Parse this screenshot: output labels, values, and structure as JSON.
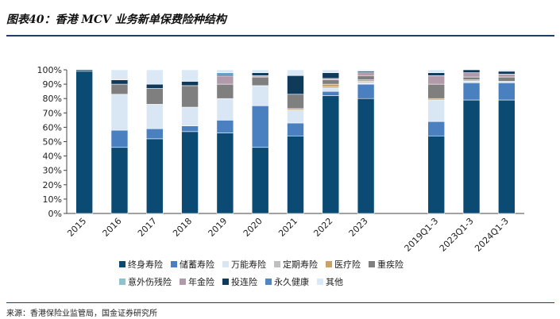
{
  "figure": {
    "title": "图表40：香港 MCV 业务新单保费险种结构",
    "source": "来源：香港保险业监管局，国金证券研究所"
  },
  "colors": {
    "终身寿险": "#0b4a72",
    "储蓄寿险": "#4a7fc0",
    "万能寿险": "#d9e7f5",
    "定期寿险": "#bfbfbf",
    "医疗险": "#c9a264",
    "重疾险": "#7f7f7f",
    "意外伤残险": "#8ec3cb",
    "年金险": "#b19aa9",
    "投连险": "#0f3a5a",
    "永久健康": "#4e86c6",
    "其他": "#dbe9f6"
  },
  "chart_data": {
    "type": "bar",
    "stacked": true,
    "categories": [
      "2015",
      "2016",
      "2017",
      "2018",
      "2019",
      "2020",
      "2021",
      "2022",
      "2023",
      "2019Q1-3",
      "2023Q1-3",
      "2024Q1-3"
    ],
    "ylim": [
      0,
      100
    ],
    "yticks": [
      "0%",
      "10%",
      "20%",
      "30%",
      "40%",
      "50%",
      "60%",
      "70%",
      "80%",
      "90%",
      "100%"
    ],
    "legend_rows": [
      [
        "终身寿险",
        "储蓄寿险",
        "万能寿险",
        "定期寿险",
        "医疗险",
        "重疾险"
      ],
      [
        "意外伤残险",
        "年金险",
        "投连险",
        "永久健康",
        "其他"
      ]
    ],
    "series": [
      {
        "name": "终身寿险",
        "values": [
          99,
          46,
          52,
          57,
          56,
          46,
          54,
          82,
          80,
          54,
          79,
          79
        ]
      },
      {
        "name": "储蓄寿险",
        "values": [
          0,
          12,
          7,
          4,
          9,
          29,
          9,
          3,
          10,
          10,
          12,
          12
        ]
      },
      {
        "name": "万能寿险",
        "values": [
          0,
          25,
          17,
          13,
          15,
          14,
          9,
          2,
          1,
          15,
          1,
          1
        ]
      },
      {
        "name": "定期寿险",
        "values": [
          0,
          0,
          0,
          0,
          0,
          0,
          0,
          1,
          1,
          0,
          1,
          0
        ]
      },
      {
        "name": "医疗险",
        "values": [
          0,
          0,
          0,
          0,
          0,
          0,
          1,
          2,
          1,
          1,
          0,
          0
        ]
      },
      {
        "name": "重疾险",
        "values": [
          0,
          7,
          11,
          15,
          10,
          6,
          10,
          3,
          3,
          10,
          2,
          3
        ]
      },
      {
        "name": "意外伤残险",
        "values": [
          0,
          0,
          0,
          0,
          0,
          0,
          0,
          0,
          0,
          0,
          0,
          0
        ]
      },
      {
        "name": "年金险",
        "values": [
          0,
          0,
          0,
          0,
          6,
          1,
          0,
          1,
          2,
          6,
          3,
          2
        ]
      },
      {
        "name": "投连险",
        "values": [
          1,
          3,
          3,
          3,
          1,
          2,
          13,
          4,
          1,
          2,
          2,
          2
        ]
      },
      {
        "name": "永久健康",
        "values": [
          0,
          0,
          0,
          0,
          1,
          0,
          0,
          0,
          0,
          0,
          0,
          0
        ]
      },
      {
        "name": "其他",
        "values": [
          0,
          7,
          10,
          8,
          2,
          2,
          4,
          2,
          1,
          2,
          0,
          1
        ]
      }
    ]
  }
}
